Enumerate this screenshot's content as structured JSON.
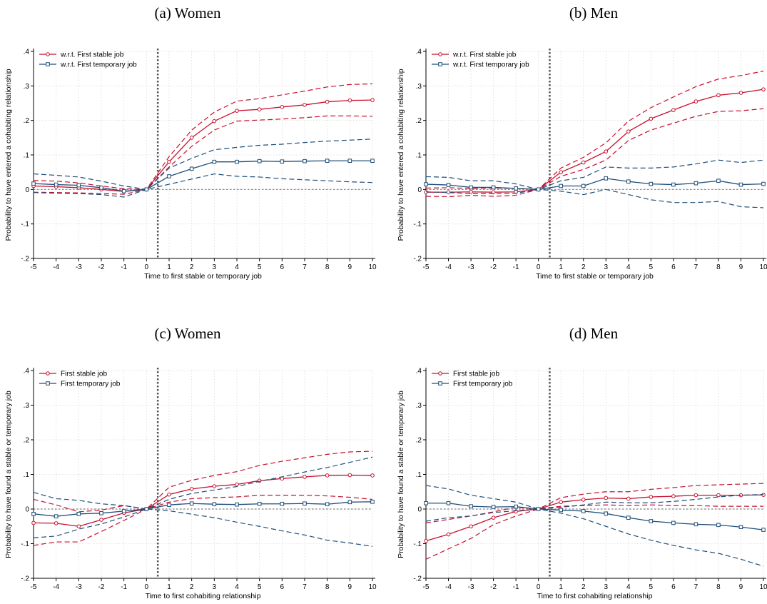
{
  "titles": [
    "(a) Women",
    "(b) Men",
    "(c) Women",
    "(d) Men"
  ],
  "colors": {
    "stable": "#c8102e",
    "temporary": "#1f4e79",
    "grid": "#d9d9d9",
    "zero": "#808080",
    "vline": "#555555"
  },
  "chart_data": [
    {
      "type": "line",
      "title": "(a) Women",
      "xlabel": "Time to first stable or temporary job",
      "ylabel": "Probability to have entered a cohabiting relationship",
      "x": [
        -5,
        -4,
        -3,
        -2,
        -1,
        0,
        1,
        2,
        3,
        4,
        5,
        6,
        7,
        8,
        9,
        10
      ],
      "xticks": [
        "-5",
        "-4",
        "-3",
        "-2",
        "-1",
        "0",
        "1",
        "2",
        "3",
        "4",
        "5",
        "6",
        "7",
        "8",
        "9",
        "10"
      ],
      "ylim": [
        -0.2,
        0.4
      ],
      "yticks": [
        "-.2",
        "-.1",
        "0",
        ".1",
        ".2",
        ".3",
        ".4"
      ],
      "legend_position": "top-left",
      "grid": true,
      "vline_x": 0.5,
      "series": [
        {
          "name": "w.r.t. First stable job",
          "color": "stable",
          "marker": "circle",
          "values": [
            0.01,
            0.008,
            0.005,
            0.0,
            -0.006,
            0.0,
            0.08,
            0.15,
            0.198,
            0.228,
            0.232,
            0.239,
            0.245,
            0.254,
            0.258,
            0.259
          ],
          "lower": [
            -0.008,
            -0.009,
            -0.01,
            -0.012,
            -0.014,
            0.0,
            0.065,
            0.125,
            0.172,
            0.198,
            0.201,
            0.204,
            0.208,
            0.213,
            0.213,
            0.212
          ],
          "upper": [
            0.026,
            0.024,
            0.019,
            0.01,
            0.002,
            0.0,
            0.095,
            0.172,
            0.224,
            0.256,
            0.263,
            0.274,
            0.285,
            0.297,
            0.304,
            0.306
          ]
        },
        {
          "name": "w.r.t. First temporary job",
          "color": "temporary",
          "marker": "square",
          "values": [
            0.017,
            0.014,
            0.012,
            0.005,
            -0.005,
            0.0,
            0.038,
            0.06,
            0.08,
            0.08,
            0.082,
            0.081,
            0.082,
            0.083,
            0.083,
            0.083
          ],
          "lower": [
            -0.009,
            -0.011,
            -0.012,
            -0.015,
            -0.022,
            0.0,
            0.015,
            0.03,
            0.045,
            0.038,
            0.036,
            0.031,
            0.028,
            0.025,
            0.022,
            0.02
          ],
          "upper": [
            0.045,
            0.041,
            0.036,
            0.024,
            0.01,
            0.0,
            0.062,
            0.09,
            0.115,
            0.122,
            0.128,
            0.131,
            0.136,
            0.14,
            0.143,
            0.146
          ]
        }
      ]
    },
    {
      "type": "line",
      "title": "(b) Men",
      "xlabel": "Time to first stable or temporary job",
      "ylabel": "Probability to have entered a cohabiting relationship",
      "x": [
        -5,
        -4,
        -3,
        -2,
        -1,
        0,
        1,
        2,
        3,
        4,
        5,
        6,
        7,
        8,
        9,
        10
      ],
      "xticks": [
        "-5",
        "-4",
        "-3",
        "-2",
        "-1",
        "0",
        "1",
        "2",
        "3",
        "4",
        "5",
        "6",
        "7",
        "8",
        "9",
        "10"
      ],
      "ylim": [
        -0.2,
        0.4
      ],
      "yticks": [
        "-.2",
        "-.1",
        "0",
        ".1",
        ".2",
        ".3",
        ".4"
      ],
      "legend_position": "top-left",
      "grid": true,
      "vline_x": 0.5,
      "series": [
        {
          "name": "w.r.t. First stable job",
          "color": "stable",
          "marker": "circle",
          "values": [
            -0.008,
            -0.008,
            -0.007,
            -0.008,
            -0.007,
            0.0,
            0.05,
            0.078,
            0.11,
            0.168,
            0.205,
            0.23,
            0.255,
            0.273,
            0.28,
            0.29
          ],
          "lower": [
            -0.02,
            -0.021,
            -0.017,
            -0.02,
            -0.017,
            0.0,
            0.038,
            0.058,
            0.085,
            0.142,
            0.172,
            0.192,
            0.212,
            0.226,
            0.228,
            0.234
          ],
          "upper": [
            0.004,
            0.005,
            0.003,
            0.004,
            0.003,
            0.0,
            0.062,
            0.093,
            0.135,
            0.198,
            0.237,
            0.268,
            0.298,
            0.32,
            0.33,
            0.343
          ]
        },
        {
          "name": "w.r.t. First temporary job",
          "color": "temporary",
          "marker": "square",
          "values": [
            0.015,
            0.013,
            0.006,
            0.006,
            0.003,
            0.0,
            0.01,
            0.01,
            0.032,
            0.023,
            0.016,
            0.014,
            0.018,
            0.025,
            0.014,
            0.016
          ],
          "lower": [
            -0.007,
            -0.009,
            -0.012,
            -0.012,
            -0.011,
            0.0,
            -0.005,
            -0.015,
            0.0,
            -0.015,
            -0.03,
            -0.038,
            -0.038,
            -0.035,
            -0.05,
            -0.053
          ],
          "upper": [
            0.037,
            0.035,
            0.025,
            0.025,
            0.016,
            0.0,
            0.025,
            0.035,
            0.065,
            0.062,
            0.062,
            0.065,
            0.074,
            0.085,
            0.078,
            0.085
          ]
        }
      ]
    },
    {
      "type": "line",
      "title": "(c) Women",
      "xlabel": "Time to first cohabiting relationship",
      "ylabel": "Probability to have found a stable or temporary job",
      "x": [
        -5,
        -4,
        -3,
        -2,
        -1,
        0,
        1,
        2,
        3,
        4,
        5,
        6,
        7,
        8,
        9,
        10
      ],
      "xticks": [
        "-5",
        "-4",
        "-3",
        "-2",
        "-1",
        "0",
        "1",
        "2",
        "3",
        "4",
        "5",
        "6",
        "7",
        "8",
        "9",
        "10"
      ],
      "ylim": [
        -0.2,
        0.4
      ],
      "yticks": [
        "-.2",
        "-.1",
        "0",
        ".1",
        ".2",
        ".3",
        ".4"
      ],
      "legend_position": "top-left",
      "grid": true,
      "vline_x": 0.5,
      "series": [
        {
          "name": "First stable job",
          "color": "stable",
          "marker": "circle",
          "values": [
            -0.04,
            -0.041,
            -0.05,
            -0.031,
            -0.011,
            0.0,
            0.042,
            0.058,
            0.066,
            0.071,
            0.082,
            0.088,
            0.093,
            0.097,
            0.098,
            0.097
          ],
          "lower": [
            -0.105,
            -0.095,
            -0.095,
            -0.065,
            -0.033,
            0.0,
            0.02,
            0.03,
            0.033,
            0.035,
            0.04,
            0.04,
            0.04,
            0.038,
            0.034,
            0.028
          ],
          "upper": [
            0.028,
            0.012,
            -0.008,
            -0.003,
            0.01,
            0.0,
            0.063,
            0.083,
            0.097,
            0.108,
            0.126,
            0.138,
            0.148,
            0.158,
            0.165,
            0.167
          ]
        },
        {
          "name": "First temporary job",
          "color": "temporary",
          "marker": "square",
          "values": [
            -0.014,
            -0.021,
            -0.014,
            -0.012,
            -0.006,
            0.0,
            0.012,
            0.016,
            0.014,
            0.013,
            0.015,
            0.015,
            0.016,
            0.014,
            0.02,
            0.021
          ],
          "lower": [
            -0.083,
            -0.078,
            -0.058,
            -0.043,
            -0.023,
            0.0,
            -0.005,
            -0.015,
            -0.025,
            -0.038,
            -0.05,
            -0.063,
            -0.075,
            -0.09,
            -0.098,
            -0.108
          ],
          "upper": [
            0.048,
            0.03,
            0.025,
            0.015,
            0.01,
            0.0,
            0.028,
            0.045,
            0.055,
            0.065,
            0.08,
            0.093,
            0.107,
            0.12,
            0.135,
            0.15
          ]
        }
      ]
    },
    {
      "type": "line",
      "title": "(d) Men",
      "xlabel": "Time to first cohabiting relationship",
      "ylabel": "Probability to have found a stable or temporary job",
      "x": [
        -5,
        -4,
        -3,
        -2,
        -1,
        0,
        1,
        2,
        3,
        4,
        5,
        6,
        7,
        8,
        9,
        10
      ],
      "xticks": [
        "-5",
        "-4",
        "-3",
        "-2",
        "-1",
        "0",
        "1",
        "2",
        "3",
        "4",
        "5",
        "6",
        "7",
        "8",
        "9",
        "10"
      ],
      "ylim": [
        -0.2,
        0.4
      ],
      "yticks": [
        "-.2",
        "-.1",
        "0",
        ".1",
        ".2",
        ".3",
        ".4"
      ],
      "legend_position": "top-left",
      "grid": true,
      "vline_x": 0.5,
      "series": [
        {
          "name": "First stable job",
          "color": "stable",
          "marker": "circle",
          "values": [
            -0.092,
            -0.073,
            -0.05,
            -0.025,
            -0.007,
            0.0,
            0.02,
            0.027,
            0.032,
            0.03,
            0.035,
            0.037,
            0.04,
            0.04,
            0.04,
            0.041
          ],
          "lower": [
            -0.145,
            -0.115,
            -0.085,
            -0.045,
            -0.02,
            0.0,
            0.008,
            0.01,
            0.012,
            0.01,
            0.012,
            0.01,
            0.01,
            0.008,
            0.008,
            0.008
          ],
          "upper": [
            -0.04,
            -0.03,
            -0.02,
            -0.008,
            0.005,
            0.0,
            0.033,
            0.043,
            0.05,
            0.05,
            0.057,
            0.062,
            0.068,
            0.07,
            0.072,
            0.074
          ]
        },
        {
          "name": "First temporary job",
          "color": "temporary",
          "marker": "square",
          "values": [
            0.017,
            0.017,
            0.008,
            0.006,
            0.007,
            0.0,
            -0.003,
            -0.006,
            -0.013,
            -0.025,
            -0.035,
            -0.04,
            -0.044,
            -0.046,
            -0.052,
            -0.06
          ],
          "lower": [
            -0.035,
            -0.025,
            -0.02,
            -0.01,
            -0.005,
            0.0,
            -0.012,
            -0.028,
            -0.05,
            -0.072,
            -0.09,
            -0.105,
            -0.118,
            -0.128,
            -0.145,
            -0.165
          ],
          "upper": [
            0.068,
            0.058,
            0.04,
            0.03,
            0.02,
            0.0,
            0.005,
            0.012,
            0.02,
            0.018,
            0.018,
            0.022,
            0.028,
            0.035,
            0.04,
            0.042
          ]
        }
      ]
    }
  ]
}
